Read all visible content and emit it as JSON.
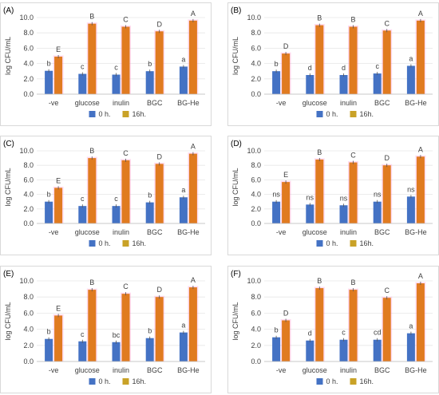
{
  "colors": {
    "bar_0h": "#4472C4",
    "bar_16h": "#E07B20",
    "bar_16h_alt": "#C9A227",
    "error_glow": "#ff9ad6"
  },
  "chart_data": [
    {
      "panel": "(A)",
      "type": "bar",
      "ylabel": "log CFU/mL",
      "ylim": [
        0,
        10
      ],
      "yticks": [
        "0.0",
        "2.0",
        "4.0",
        "6.0",
        "8.0",
        "10.0"
      ],
      "categories": [
        "-ve",
        "glucose",
        "inulin",
        "BGC",
        "BG-He"
      ],
      "series": [
        {
          "name": "0 h.",
          "values": [
            3.05,
            2.65,
            2.55,
            3.0,
            3.6
          ],
          "letters": [
            "b",
            "c",
            "c",
            "b",
            "a"
          ]
        },
        {
          "name": "16h.",
          "values": [
            4.9,
            9.2,
            8.8,
            8.2,
            9.6
          ],
          "letters": [
            "E",
            "B",
            "C",
            "D",
            "A"
          ]
        }
      ],
      "legend": "bottom",
      "grid": true
    },
    {
      "panel": "(B)",
      "type": "bar",
      "ylabel": "log CFU/mL",
      "ylim": [
        0,
        10
      ],
      "yticks": [
        "0.0",
        "2.0",
        "4.0",
        "6.0",
        "8.0",
        "10.0"
      ],
      "categories": [
        "-ve",
        "glucose",
        "inulin",
        "BGC",
        "BG-He"
      ],
      "series": [
        {
          "name": "0 h.",
          "values": [
            3.0,
            2.5,
            2.5,
            2.7,
            3.7
          ],
          "letters": [
            "b",
            "d",
            "d",
            "c",
            "a"
          ]
        },
        {
          "name": "16h.",
          "values": [
            5.3,
            9.0,
            8.8,
            8.3,
            9.6
          ],
          "letters": [
            "D",
            "B",
            "B",
            "C",
            "A"
          ]
        }
      ],
      "legend": "bottom",
      "grid": true
    },
    {
      "panel": "(C)",
      "type": "bar",
      "ylabel": "log CFU/mL",
      "ylim": [
        0,
        10
      ],
      "yticks": [
        "0.0",
        "2.0",
        "4.0",
        "6.0",
        "8.0",
        "10.0"
      ],
      "categories": [
        "-ve",
        "glucose",
        "inulin",
        "BGC",
        "BG-He"
      ],
      "series": [
        {
          "name": "0 h.",
          "values": [
            3.0,
            2.4,
            2.4,
            2.9,
            3.6
          ],
          "letters": [
            "b",
            "c",
            "c",
            "b",
            "a"
          ]
        },
        {
          "name": "16h.",
          "values": [
            4.9,
            9.0,
            8.7,
            8.2,
            9.6
          ],
          "letters": [
            "E",
            "B",
            "C",
            "D",
            "A"
          ]
        }
      ],
      "legend": "bottom",
      "grid": true
    },
    {
      "panel": "(D)",
      "type": "bar",
      "ylabel": "log CFU/mL",
      "ylim": [
        0,
        10
      ],
      "yticks": [
        "0.0",
        "2.0",
        "4.0",
        "6.0",
        "8.0",
        "10.0"
      ],
      "categories": [
        "-ve",
        "glucose",
        "inulin",
        "BGC",
        "BG-He"
      ],
      "series": [
        {
          "name": "0 h.",
          "values": [
            3.0,
            2.6,
            2.5,
            3.0,
            3.7
          ],
          "letters": [
            "ns",
            "ns",
            "ns",
            "ns",
            "ns"
          ]
        },
        {
          "name": "16h.",
          "values": [
            5.7,
            8.8,
            8.4,
            8.0,
            9.2
          ],
          "letters": [
            "E",
            "B",
            "C",
            "D",
            "A"
          ]
        }
      ],
      "legend": "bottom",
      "grid": true
    },
    {
      "panel": "(E)",
      "type": "bar",
      "ylabel": "log CFU/mL",
      "ylim": [
        0,
        10
      ],
      "yticks": [
        "0.0",
        "2.0",
        "4.0",
        "6.0",
        "8.0",
        "10.0"
      ],
      "categories": [
        "-ve",
        "glucose",
        "inulin",
        "BGC",
        "BG-He"
      ],
      "series": [
        {
          "name": "0 h.",
          "values": [
            2.8,
            2.5,
            2.4,
            2.9,
            3.6
          ],
          "letters": [
            "b",
            "c",
            "bc",
            "b",
            "a"
          ]
        },
        {
          "name": "16h.",
          "values": [
            5.7,
            8.9,
            8.4,
            8.0,
            9.2
          ],
          "letters": [
            "E",
            "B",
            "C",
            "D",
            "A"
          ]
        }
      ],
      "legend": "bottom",
      "grid": true
    },
    {
      "panel": "(F)",
      "type": "bar",
      "ylabel": "log CFU/mL",
      "ylim": [
        0,
        10
      ],
      "yticks": [
        "0.0",
        "2.0",
        "4.0",
        "6.0",
        "8.0",
        "10.0"
      ],
      "categories": [
        "-ve",
        "glucose",
        "inulin",
        "BGC",
        "BG-He"
      ],
      "series": [
        {
          "name": "0 h.",
          "values": [
            3.0,
            2.6,
            2.7,
            2.7,
            3.5
          ],
          "letters": [
            "b",
            "d",
            "c",
            "cd",
            "a"
          ]
        },
        {
          "name": "16h.",
          "values": [
            5.1,
            9.1,
            8.9,
            7.9,
            9.7
          ],
          "letters": [
            "D",
            "B",
            "B",
            "C",
            "A"
          ]
        }
      ],
      "legend": "bottom",
      "grid": true
    }
  ]
}
